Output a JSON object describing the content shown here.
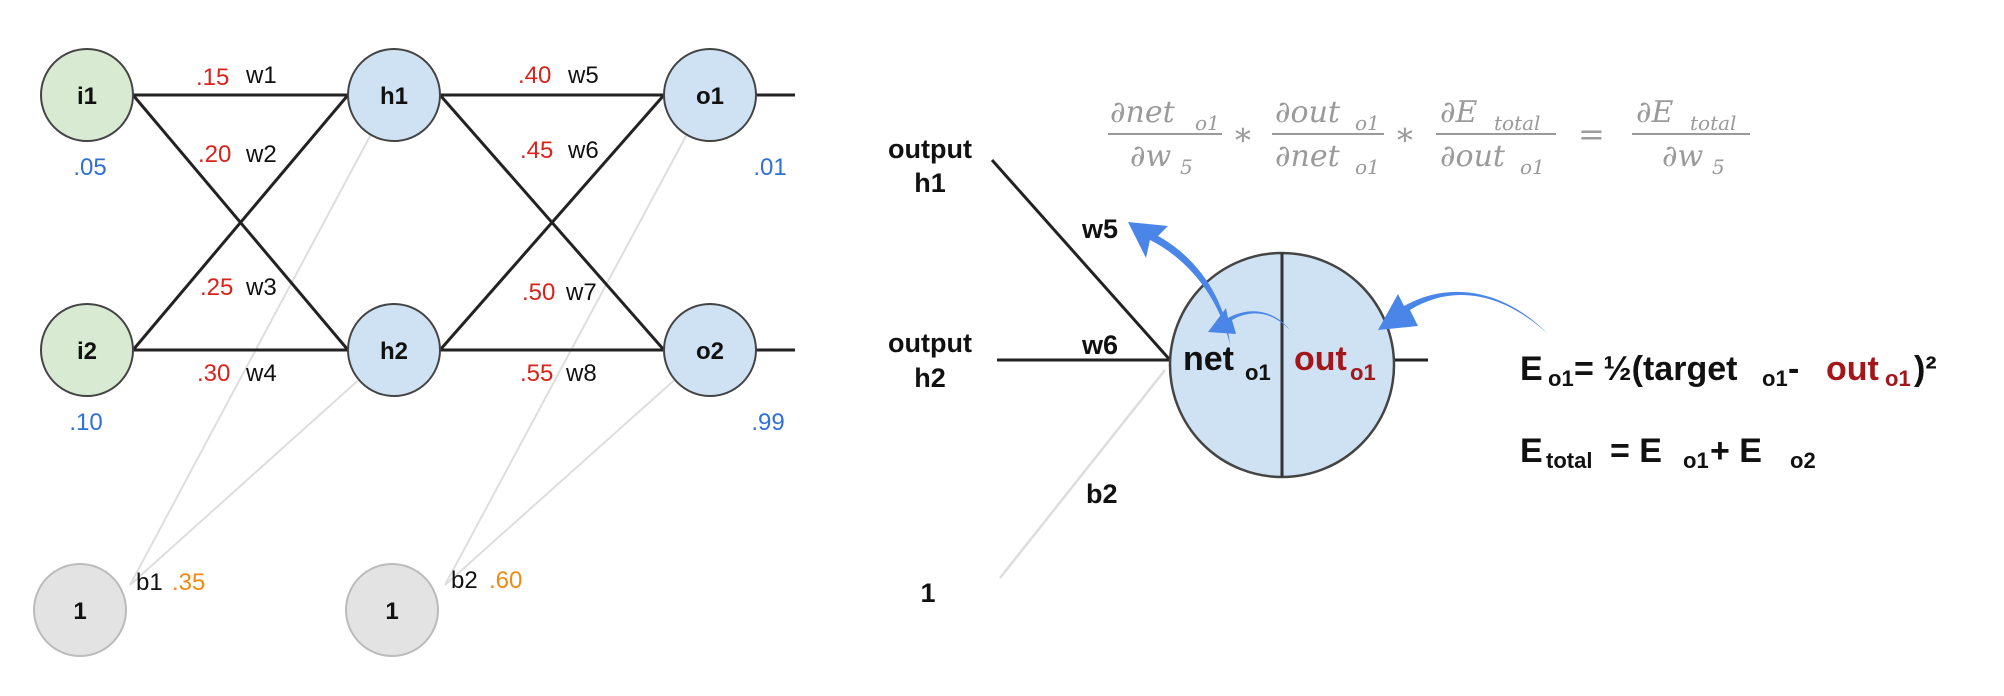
{
  "network": {
    "inputs": [
      {
        "label": "i1",
        "value": ".05"
      },
      {
        "label": "i2",
        "value": ".10"
      }
    ],
    "hidden": [
      {
        "label": "h1"
      },
      {
        "label": "h2"
      }
    ],
    "outputs": [
      {
        "label": "o1",
        "value": ".01"
      },
      {
        "label": "o2",
        "value": ".99"
      }
    ],
    "bias_nodes": [
      {
        "label": "1",
        "name": "b1",
        "value": ".35"
      },
      {
        "label": "1",
        "name": "b2",
        "value": ".60"
      }
    ],
    "weights": [
      {
        "name": "w1",
        "value": ".15"
      },
      {
        "name": "w2",
        "value": ".20"
      },
      {
        "name": "w3",
        "value": ".25"
      },
      {
        "name": "w4",
        "value": ".30"
      },
      {
        "name": "w5",
        "value": ".40"
      },
      {
        "name": "w6",
        "value": ".45"
      },
      {
        "name": "w7",
        "value": ".50"
      },
      {
        "name": "w8",
        "value": ".55"
      }
    ]
  },
  "detail": {
    "output_h1": [
      "output",
      "h1"
    ],
    "output_h2": [
      "output",
      "h2"
    ],
    "bias_input": "1",
    "w5": "w5",
    "w6": "w6",
    "b2": "b2",
    "net": "net",
    "out": "out",
    "sub_o1": "o1"
  },
  "formula": {
    "f1_num": "∂net",
    "f1_num_sub": "o1",
    "f1_den": "∂w",
    "f1_den_sub": "5",
    "f2_num": "∂out",
    "f2_num_sub": "o1",
    "f2_den": "∂net",
    "f2_den_sub": "o1",
    "f3_num": "∂E",
    "f3_num_sub": "total",
    "f3_den": "∂out",
    "f3_den_sub": "o1",
    "f4_num": "∂E",
    "f4_num_sub": "total",
    "f4_den": "∂w",
    "f4_den_sub": "5",
    "times": "∗",
    "equals": "="
  },
  "equations": {
    "eq1_E": "E",
    "eq1_sub": "o1",
    "eq1_mid": " = ½(target",
    "eq1_sub2": "o1",
    "eq1_minus": " - ",
    "eq1_out": "out",
    "eq1_out_sub": "o1",
    "eq1_end": ")²",
    "eq2_E": "E",
    "eq2_sub": "total",
    "eq2_mid": " = E",
    "eq2_sub2": "o1",
    "eq2_plus": " + E",
    "eq2_sub3": "o2"
  },
  "colors": {
    "input_fill": "#d9ead3",
    "hidden_fill": "#cfe2f3",
    "bias_fill": "#e3e3e3",
    "weight_value": "#d8231b",
    "io_value": "#2f6fd6",
    "bias_value": "#f08a12",
    "arrow": "#4a86e8",
    "out_red": "#a3171b"
  }
}
